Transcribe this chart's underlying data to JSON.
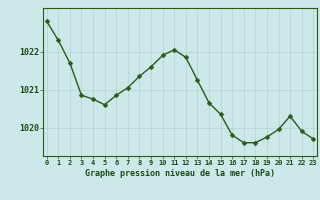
{
  "x": [
    0,
    1,
    2,
    3,
    4,
    5,
    6,
    7,
    8,
    9,
    10,
    11,
    12,
    13,
    14,
    15,
    16,
    17,
    18,
    19,
    20,
    21,
    22,
    23
  ],
  "y": [
    1022.8,
    1022.3,
    1021.7,
    1020.85,
    1020.75,
    1020.6,
    1020.85,
    1021.05,
    1021.35,
    1021.6,
    1021.9,
    1022.05,
    1021.85,
    1021.25,
    1020.65,
    1020.35,
    1019.8,
    1019.6,
    1019.6,
    1019.75,
    1019.95,
    1020.3,
    1019.9,
    1019.7
  ],
  "title": "Graphe pression niveau de la mer (hPa)",
  "bg_color": "#cce8e8",
  "line_color": "#2d5a1b",
  "marker_color": "#2d5a1b",
  "grid_major_color": "#b8d4d4",
  "grid_minor_color": "#c8e0e0",
  "axis_label_color": "#1a4a1a",
  "spine_color": "#2d5a1b",
  "yticks": [
    1020,
    1021,
    1022
  ],
  "xticks": [
    0,
    1,
    2,
    3,
    4,
    5,
    6,
    7,
    8,
    9,
    10,
    11,
    12,
    13,
    14,
    15,
    16,
    17,
    18,
    19,
    20,
    21,
    22,
    23
  ],
  "ylim": [
    1019.25,
    1023.15
  ],
  "xlim": [
    -0.3,
    23.3
  ]
}
